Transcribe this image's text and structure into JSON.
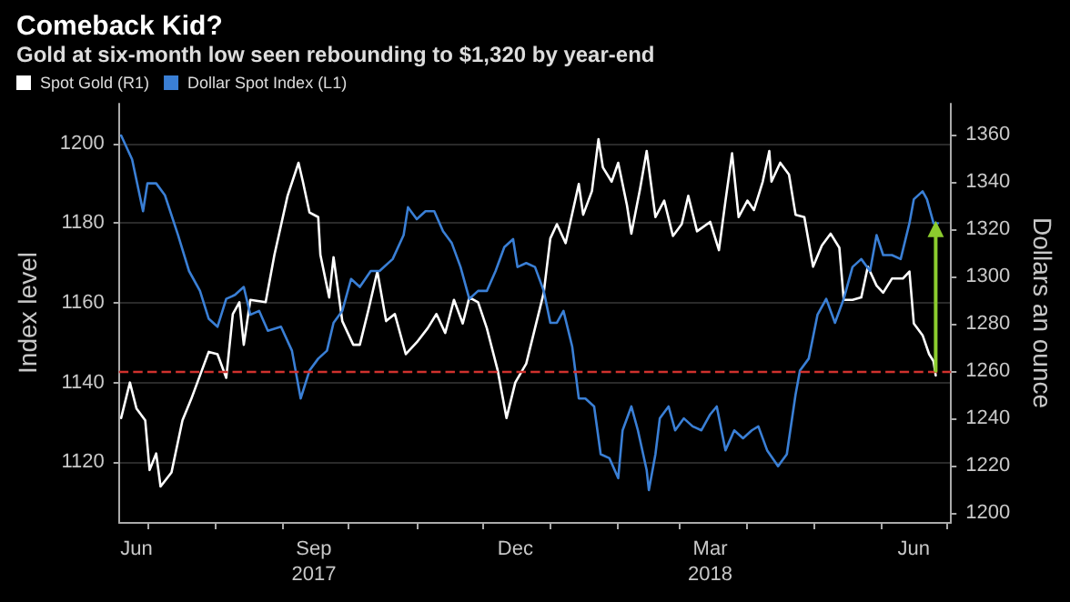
{
  "chart_data": {
    "type": "line",
    "title": "Comeback Kid?",
    "subtitle": "Gold at six-month low seen rebounding to $1,320 by year-end",
    "ylabel": "Index level",
    "y2label": "Dollars an ounce",
    "xlim": [
      "2017-06-18",
      "2018-07-03"
    ],
    "xticks": [
      {
        "value": "2017-06-26",
        "label": "Jun"
      },
      {
        "value": "2017-07-01",
        "label": null
      },
      {
        "value": "2017-08-01",
        "label": null
      },
      {
        "value": "2017-09-01",
        "label": null
      },
      {
        "value": "2017-09-15",
        "label": "Sep\n2017"
      },
      {
        "value": "2017-10-01",
        "label": null
      },
      {
        "value": "2017-11-01",
        "label": null
      },
      {
        "value": "2017-12-01",
        "label": null
      },
      {
        "value": "2017-12-16",
        "label": "Dec"
      },
      {
        "value": "2018-01-01",
        "label": null
      },
      {
        "value": "2018-02-01",
        "label": null
      },
      {
        "value": "2018-03-01",
        "label": null
      },
      {
        "value": "2018-03-15",
        "label": "Mar\n2018"
      },
      {
        "value": "2018-04-01",
        "label": null
      },
      {
        "value": "2018-05-01",
        "label": null
      },
      {
        "value": "2018-06-01",
        "label": null
      },
      {
        "value": "2018-06-16",
        "label": "Jun"
      },
      {
        "value": "2018-07-01",
        "label": null
      }
    ],
    "ylim": [
      1105,
      1210
    ],
    "yticks": [
      1120,
      1140,
      1160,
      1180,
      1200
    ],
    "y2lim": [
      1196,
      1373
    ],
    "y2ticks": [
      1200,
      1220,
      1240,
      1260,
      1280,
      1300,
      1320,
      1340,
      1360
    ],
    "grid": "y",
    "legend": "top left",
    "marker": "none",
    "line_style": "solid",
    "ref_lines": [
      {
        "axis": "y2",
        "value": 1260,
        "color": "#d0312d",
        "line_style": "dashed"
      }
    ],
    "series": [
      {
        "name": "Spot Gold (R1)",
        "color": "#ffffff",
        "axis": "y2",
        "x": [
          "2017-06-19",
          "2017-06-23",
          "2017-06-26",
          "2017-06-30",
          "2017-07-02",
          "2017-07-05",
          "2017-07-07",
          "2017-07-12",
          "2017-07-17",
          "2017-07-21",
          "2017-07-25",
          "2017-07-29",
          "2017-08-02",
          "2017-08-06",
          "2017-08-09",
          "2017-08-12",
          "2017-08-14",
          "2017-08-17",
          "2017-08-24",
          "2017-08-28",
          "2017-09-03",
          "2017-09-08",
          "2017-09-10",
          "2017-09-13",
          "2017-09-17",
          "2017-09-18",
          "2017-09-22",
          "2017-09-24",
          "2017-09-28",
          "2017-10-03",
          "2017-10-06",
          "2017-10-10",
          "2017-10-14",
          "2017-10-18",
          "2017-10-22",
          "2017-10-27",
          "2017-11-01",
          "2017-11-06",
          "2017-11-10",
          "2017-11-14",
          "2017-11-18",
          "2017-11-22",
          "2017-11-25",
          "2017-11-29",
          "2017-12-03",
          "2017-12-08",
          "2017-12-12",
          "2017-12-16",
          "2017-12-21",
          "2017-12-25",
          "2017-12-29",
          "2018-01-01",
          "2018-01-04",
          "2018-01-08",
          "2018-01-14",
          "2018-01-16",
          "2018-01-20",
          "2018-01-23",
          "2018-01-25",
          "2018-01-29",
          "2018-02-01",
          "2018-02-05",
          "2018-02-07",
          "2018-02-11",
          "2018-02-14",
          "2018-02-18",
          "2018-02-22",
          "2018-02-26",
          "2018-03-02",
          "2018-03-05",
          "2018-03-09",
          "2018-03-15",
          "2018-03-19",
          "2018-03-22",
          "2018-03-25",
          "2018-03-28",
          "2018-04-01",
          "2018-04-04",
          "2018-04-08",
          "2018-04-11",
          "2018-04-12",
          "2018-04-16",
          "2018-04-20",
          "2018-04-23",
          "2018-04-27",
          "2018-05-01",
          "2018-05-05",
          "2018-05-09",
          "2018-05-13",
          "2018-05-15",
          "2018-05-19",
          "2018-05-23",
          "2018-05-26",
          "2018-05-30",
          "2018-06-02",
          "2018-06-06",
          "2018-06-11",
          "2018-06-14",
          "2018-06-16",
          "2018-06-20",
          "2018-06-23",
          "2018-06-25",
          "2018-06-26"
        ],
        "values": [
          1240,
          1255,
          1244,
          1239,
          1218,
          1225,
          1211,
          1217,
          1239,
          1248,
          1258,
          1268,
          1267,
          1257,
          1284,
          1289,
          1271,
          1290,
          1289,
          1309,
          1334,
          1348,
          1340,
          1327,
          1325,
          1309,
          1291,
          1308,
          1281,
          1271,
          1271,
          1286,
          1302,
          1281,
          1284,
          1267,
          1272,
          1278,
          1284,
          1276,
          1290,
          1280,
          1291,
          1289,
          1278,
          1260,
          1240,
          1255,
          1263,
          1278,
          1293,
          1316,
          1322,
          1314,
          1339,
          1326,
          1336,
          1358,
          1346,
          1340,
          1348,
          1330,
          1318,
          1337,
          1353,
          1325,
          1332,
          1317,
          1322,
          1334,
          1319,
          1323,
          1311,
          1332,
          1352,
          1325,
          1332,
          1328,
          1340,
          1353,
          1340,
          1348,
          1343,
          1326,
          1325,
          1304,
          1313,
          1318,
          1312,
          1290,
          1290,
          1291,
          1304,
          1296,
          1293,
          1299,
          1299,
          1302,
          1280,
          1275,
          1267,
          1264,
          1258
        ]
      },
      {
        "name": "Dollar Spot Index (L1)",
        "color": "#3a7fd5",
        "x": [
          "2017-06-19",
          "2017-06-24",
          "2017-06-29",
          "2017-07-01",
          "2017-07-05",
          "2017-07-09",
          "2017-07-15",
          "2017-07-20",
          "2017-07-25",
          "2017-07-29",
          "2017-08-02",
          "2017-08-06",
          "2017-08-10",
          "2017-08-14",
          "2017-08-17",
          "2017-08-21",
          "2017-08-25",
          "2017-08-31",
          "2017-09-05",
          "2017-09-09",
          "2017-09-13",
          "2017-09-17",
          "2017-09-21",
          "2017-09-24",
          "2017-09-28",
          "2017-10-02",
          "2017-10-06",
          "2017-10-11",
          "2017-10-15",
          "2017-10-21",
          "2017-10-26",
          "2017-10-28",
          "2017-11-01",
          "2017-11-05",
          "2017-11-09",
          "2017-11-13",
          "2017-11-17",
          "2017-11-21",
          "2017-11-25",
          "2017-11-29",
          "2017-12-03",
          "2017-12-07",
          "2017-12-11",
          "2017-12-15",
          "2017-12-17",
          "2017-12-21",
          "2017-12-25",
          "2017-12-29",
          "2018-01-01",
          "2018-01-04",
          "2018-01-07",
          "2018-01-11",
          "2018-01-14",
          "2018-01-17",
          "2018-01-21",
          "2018-01-24",
          "2018-01-28",
          "2018-02-01",
          "2018-02-03",
          "2018-02-07",
          "2018-02-10",
          "2018-02-14",
          "2018-02-15",
          "2018-02-18",
          "2018-02-20",
          "2018-02-24",
          "2018-02-27",
          "2018-03-03",
          "2018-03-07",
          "2018-03-11",
          "2018-03-15",
          "2018-03-18",
          "2018-03-22",
          "2018-03-26",
          "2018-03-30",
          "2018-04-03",
          "2018-04-06",
          "2018-04-10",
          "2018-04-15",
          "2018-04-19",
          "2018-04-23",
          "2018-04-25",
          "2018-04-29",
          "2018-05-03",
          "2018-05-07",
          "2018-05-11",
          "2018-05-15",
          "2018-05-19",
          "2018-05-23",
          "2018-05-27",
          "2018-05-30",
          "2018-06-02",
          "2018-06-06",
          "2018-06-10",
          "2018-06-14",
          "2018-06-16",
          "2018-06-20",
          "2018-06-22",
          "2018-06-25",
          "2018-06-27"
        ],
        "values": [
          1202,
          1196,
          1183,
          1190,
          1190,
          1187,
          1177,
          1168,
          1163,
          1156,
          1154,
          1161,
          1162,
          1164,
          1157,
          1158,
          1153,
          1154,
          1148,
          1136,
          1143,
          1146,
          1148,
          1155,
          1158,
          1166,
          1164,
          1168,
          1168,
          1171,
          1177,
          1184,
          1181,
          1183,
          1183,
          1178,
          1175,
          1169,
          1161,
          1163,
          1163,
          1168,
          1174,
          1176,
          1169,
          1170,
          1169,
          1163,
          1155,
          1155,
          1158,
          1149,
          1136,
          1136,
          1134,
          1122,
          1121,
          1116,
          1128,
          1134,
          1128,
          1118,
          1113,
          1122,
          1131,
          1134,
          1128,
          1131,
          1129,
          1128,
          1132,
          1134,
          1123,
          1128,
          1126,
          1128,
          1129,
          1123,
          1119,
          1122,
          1137,
          1143,
          1146,
          1157,
          1161,
          1155,
          1161,
          1169,
          1171,
          1168,
          1177,
          1172,
          1172,
          1171,
          1180,
          1186,
          1188,
          1186,
          1180,
          1180
        ]
      },
      {
        "type": "line",
        "color": "#8ccc2e",
        "axis": "y2",
        "marker": "triangle",
        "x": [
          "2018-06-26",
          "2018-06-26"
        ],
        "values": [
          1260,
          1320
        ]
      }
    ]
  }
}
